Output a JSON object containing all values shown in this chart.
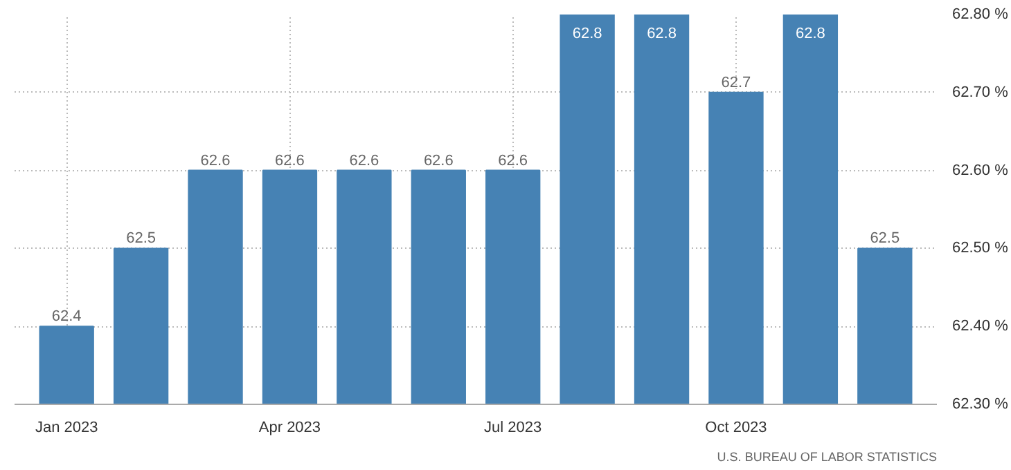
{
  "chart_data": {
    "type": "bar",
    "categories": [
      "Jan 2023",
      null,
      null,
      "Apr 2023",
      null,
      null,
      "Jul 2023",
      null,
      null,
      "Oct 2023",
      null,
      null
    ],
    "values": [
      62.4,
      62.5,
      62.6,
      62.6,
      62.6,
      62.6,
      62.6,
      62.8,
      62.8,
      62.7,
      62.8,
      62.5
    ],
    "color": "#4682b4",
    "ylim": [
      62.3,
      62.8
    ],
    "yticks": [
      {
        "value": 62.3,
        "label": "62.30 %"
      },
      {
        "value": 62.4,
        "label": "62.40 %"
      },
      {
        "value": 62.5,
        "label": "62.50 %"
      },
      {
        "value": 62.6,
        "label": "62.60 %"
      },
      {
        "value": 62.7,
        "label": "62.70 %"
      },
      {
        "value": 62.8,
        "label": "62.80 %"
      }
    ],
    "grid": true,
    "data_labels": true,
    "annotations": [
      "U.S. BUREAU OF LABOR STATISTICS"
    ]
  }
}
